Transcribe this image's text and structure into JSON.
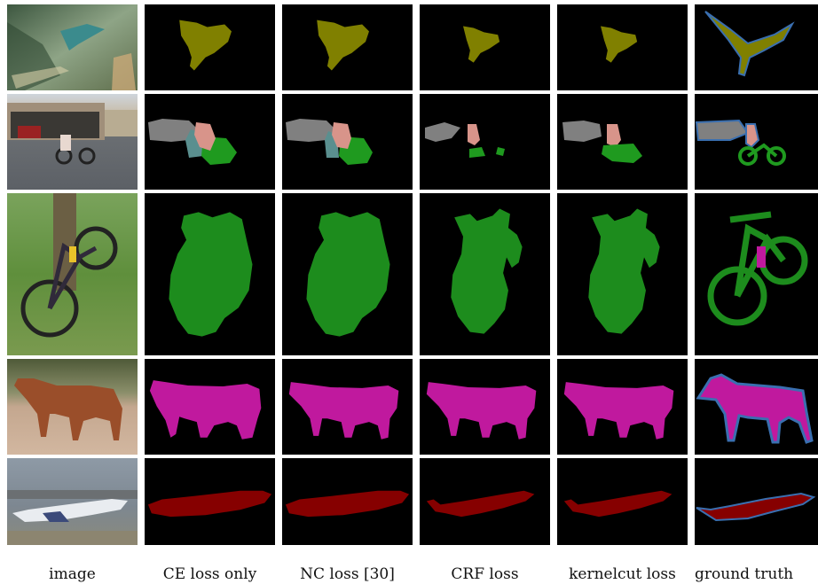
{
  "column_labels": [
    "image",
    "CE loss only",
    "NC loss [30]",
    "CRF loss",
    "kernelcut loss",
    "ground truth"
  ],
  "columns": [
    "image",
    "ce",
    "nc",
    "crf",
    "kernel",
    "gt"
  ],
  "rows": [
    "bird",
    "person-motorbike",
    "bicycle",
    "horse",
    "airplane"
  ],
  "colors": {
    "background": "#000000",
    "bird": "#808000",
    "person": "#d8948a",
    "car": "#808080",
    "motorbike": "#1f9a1f",
    "bicycle": "#1d8c1d",
    "horse": "#c0199e",
    "airplane": "#860000",
    "boundary": "#3a6fb0"
  }
}
